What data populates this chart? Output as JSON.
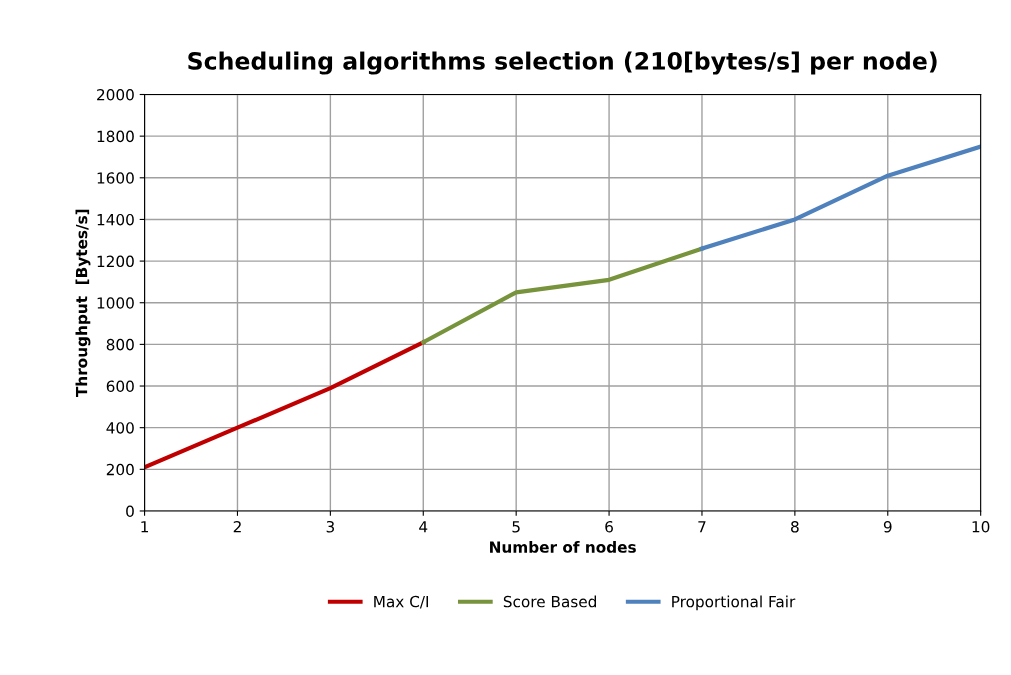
{
  "chart_data": {
    "type": "line",
    "title": "Scheduling algorithms selection (210[bytes/s] per node)",
    "xlabel": "Number of nodes",
    "ylabel": "Throughput  [Bytes/s]",
    "xlim": [
      1,
      10
    ],
    "xticks": [
      1,
      2,
      3,
      4,
      5,
      6,
      7,
      8,
      9,
      10
    ],
    "ylim": [
      0,
      2000
    ],
    "yticks": [
      0,
      200,
      400,
      600,
      800,
      1000,
      1200,
      1400,
      1600,
      1800,
      2000
    ],
    "grid": true,
    "legend": "bottom",
    "marker": "none",
    "line_style": "solid",
    "series": [
      {
        "name": "Max C/I",
        "color": "#c00000",
        "x": [
          1,
          2,
          3,
          4
        ],
        "values": [
          210,
          400,
          590,
          810
        ]
      },
      {
        "name": "Score Based",
        "color": "#77933c",
        "x": [
          4,
          5,
          6,
          7
        ],
        "values": [
          810,
          1050,
          1110,
          1260
        ]
      },
      {
        "name": "Proportional Fair",
        "color": "#4f81bd",
        "x": [
          7,
          8,
          9,
          10
        ],
        "values": [
          1260,
          1400,
          1610,
          1750
        ]
      }
    ]
  }
}
